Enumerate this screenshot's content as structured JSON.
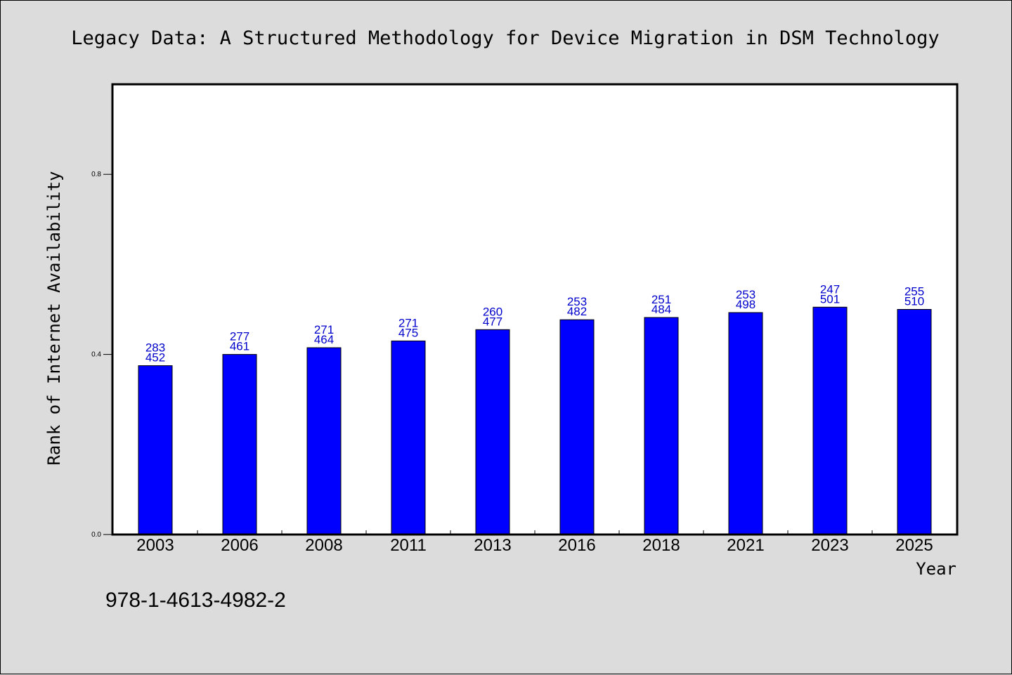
{
  "chart_data": {
    "type": "bar",
    "title": "Legacy Data: A Structured Methodology for Device Migration in DSM Technology",
    "xlabel": "Year",
    "ylabel": "Rank of Internet Availability",
    "categories": [
      "2003",
      "2006",
      "2008",
      "2011",
      "2013",
      "2016",
      "2018",
      "2021",
      "2023",
      "2025"
    ],
    "values": [
      0.375,
      0.4,
      0.415,
      0.43,
      0.455,
      0.477,
      0.482,
      0.493,
      0.505,
      0.5
    ],
    "label_top": [
      "283",
      "277",
      "271",
      "271",
      "260",
      "253",
      "251",
      "253",
      "247",
      "255"
    ],
    "label_bottom": [
      "452",
      "461",
      "464",
      "475",
      "477",
      "482",
      "484",
      "498",
      "501",
      "510"
    ],
    "yticks": [
      "0.0",
      "0.4",
      "0.8"
    ],
    "ylim": [
      0,
      1.0
    ],
    "grid": false,
    "colors": {
      "bar": "#0000ff",
      "bar_edge": "#000000",
      "data_label": "#0000cc",
      "background": "#dcdcdc",
      "plot_area": "#ffffff"
    }
  },
  "footer": {
    "isbn": "978-1-4613-4982-2"
  }
}
